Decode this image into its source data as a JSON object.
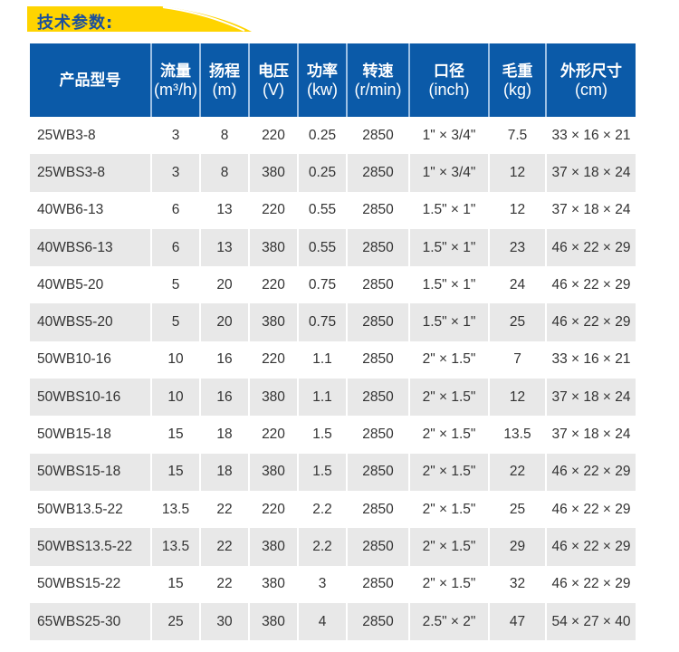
{
  "section_title": "技术参数:",
  "colors": {
    "header_bg": "#0b5aa8",
    "banner": "#ffd400",
    "title_text": "#1b4f9c",
    "alt_row": "#e8e8e8"
  },
  "table": {
    "headers": [
      {
        "label": "产品型号",
        "unit": ""
      },
      {
        "label": "流量",
        "unit": "(m³/h)"
      },
      {
        "label": "扬程",
        "unit": "(m)"
      },
      {
        "label": "电压",
        "unit": "(V)"
      },
      {
        "label": "功率",
        "unit": "(kw)"
      },
      {
        "label": "转速",
        "unit": "(r/min)"
      },
      {
        "label": "口径",
        "unit": "(inch)"
      },
      {
        "label": "毛重",
        "unit": "(kg)"
      },
      {
        "label": "外形尺寸",
        "unit": "(cm)"
      }
    ],
    "rows": [
      [
        "25WB3-8",
        "3",
        "8",
        "220",
        "0.25",
        "2850",
        "1\" × 3/4\"",
        "7.5",
        "33 × 16 × 21"
      ],
      [
        "25WBS3-8",
        "3",
        "8",
        "380",
        "0.25",
        "2850",
        "1\" × 3/4\"",
        "12",
        "37 × 18 × 24"
      ],
      [
        "40WB6-13",
        "6",
        "13",
        "220",
        "0.55",
        "2850",
        "1.5\" × 1\"",
        "12",
        "37 × 18 × 24"
      ],
      [
        "40WBS6-13",
        "6",
        "13",
        "380",
        "0.55",
        "2850",
        "1.5\" × 1\"",
        "23",
        "46 × 22 × 29"
      ],
      [
        "40WB5-20",
        "5",
        "20",
        "220",
        "0.75",
        "2850",
        "1.5\" × 1\"",
        "24",
        "46 × 22 × 29"
      ],
      [
        "40WBS5-20",
        "5",
        "20",
        "380",
        "0.75",
        "2850",
        "1.5\" × 1\"",
        "25",
        "46 × 22 × 29"
      ],
      [
        "50WB10-16",
        "10",
        "16",
        "220",
        "1.1",
        "2850",
        "2\" × 1.5\"",
        "7",
        "33 × 16 × 21"
      ],
      [
        "50WBS10-16",
        "10",
        "16",
        "380",
        "1.1",
        "2850",
        "2\" × 1.5\"",
        "12",
        "37 × 18 × 24"
      ],
      [
        "50WB15-18",
        "15",
        "18",
        "220",
        "1.5",
        "2850",
        "2\" × 1.5\"",
        "13.5",
        "37 × 18 × 24"
      ],
      [
        "50WBS15-18",
        "15",
        "18",
        "380",
        "1.5",
        "2850",
        "2\" × 1.5\"",
        "22",
        "46 × 22 × 29"
      ],
      [
        "50WB13.5-22",
        "13.5",
        "22",
        "220",
        "2.2",
        "2850",
        "2\" × 1.5\"",
        "25",
        "46 × 22 × 29"
      ],
      [
        "50WBS13.5-22",
        "13.5",
        "22",
        "380",
        "2.2",
        "2850",
        "2\" × 1.5\"",
        "29",
        "46 × 22 × 29"
      ],
      [
        "50WBS15-22",
        "15",
        "22",
        "380",
        "3",
        "2850",
        "2\" × 1.5\"",
        "32",
        "46 × 22 × 29"
      ],
      [
        "65WBS25-30",
        "25",
        "30",
        "380",
        "4",
        "2850",
        "2.5\" × 2\"",
        "47",
        "54 × 27 × 40"
      ]
    ]
  }
}
